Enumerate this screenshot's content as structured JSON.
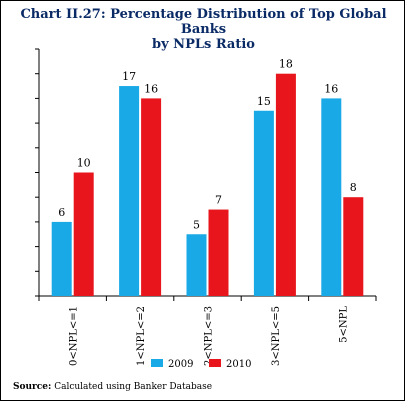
{
  "title_line1": "Chart II.27: Percentage Distribution of Top Global Banks",
  "title_line2": "by NPLs Ratio",
  "source": {
    "label": "Source:",
    "text": "Calculated using Banker Database"
  },
  "colors": {
    "series_2009": "#19a9e6",
    "series_2010": "#e8161c",
    "axis": "#000000",
    "grid": "#000000",
    "title": "#0a2a66"
  },
  "chart_data": {
    "type": "bar",
    "categories": [
      "0<NPL<=1",
      "1<NPL<=2",
      "2<NPL<=3",
      "3<NPL<=5",
      "5<NPL"
    ],
    "series": [
      {
        "name": "2009",
        "values": [
          6,
          17,
          5,
          15,
          16
        ]
      },
      {
        "name": "2010",
        "values": [
          10,
          16,
          7,
          18,
          8
        ]
      }
    ],
    "ylim": [
      0,
      20
    ],
    "ytick_step": 2,
    "ytick_labels_shown": false,
    "data_labels": true,
    "legend_position": "bottom",
    "grid": false
  }
}
